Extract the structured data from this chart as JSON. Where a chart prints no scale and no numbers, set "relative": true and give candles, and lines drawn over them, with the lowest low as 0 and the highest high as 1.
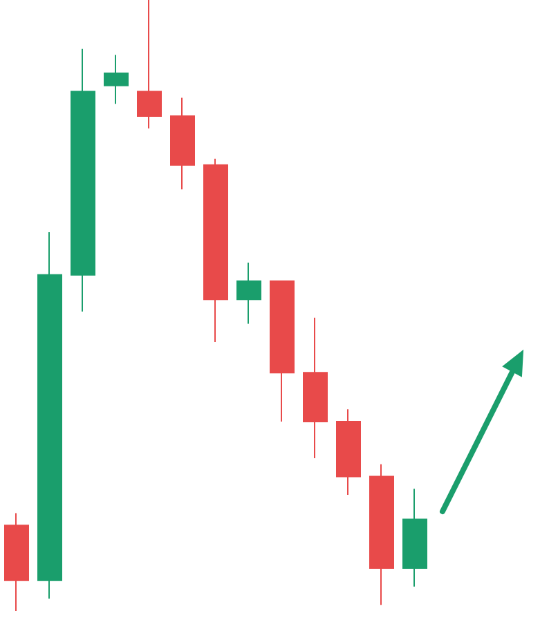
{
  "chart_data": {
    "type": "candlestick",
    "relative": true,
    "categories": [
      null,
      null,
      null,
      null,
      null,
      null,
      null,
      null,
      null,
      null,
      null,
      null,
      null
    ],
    "ohlc": [
      [
        0.14,
        0.16,
        0,
        0.05
      ],
      [
        0.05,
        0.62,
        0.02,
        0.55
      ],
      [
        0.55,
        0.92,
        0.49,
        0.85
      ],
      [
        0.86,
        0.91,
        0.83,
        0.88
      ],
      [
        0.85,
        1,
        0.79,
        0.81
      ],
      [
        0.81,
        0.84,
        0.69,
        0.73
      ],
      [
        0.73,
        0.74,
        0.44,
        0.51
      ],
      [
        0.51,
        0.57,
        0.47,
        0.54
      ],
      [
        0.54,
        0.54,
        0.31,
        0.39
      ],
      [
        0.39,
        0.48,
        0.25,
        0.31
      ],
      [
        0.31,
        0.33,
        0.19,
        0.22
      ],
      [
        0.22,
        0.24,
        0.01,
        0.07
      ],
      [
        0.07,
        0.2,
        0.04,
        0.15
      ]
    ],
    "colors": [
      "#e84a4a",
      "#1a9e6c",
      "#1a9e6c",
      "#1a9e6c",
      "#e84a4a",
      "#e84a4a",
      "#e84a4a",
      "#1a9e6c",
      "#e84a4a",
      "#e84a4a",
      "#e84a4a",
      "#e84a4a",
      "#1a9e6c"
    ]
  }
}
